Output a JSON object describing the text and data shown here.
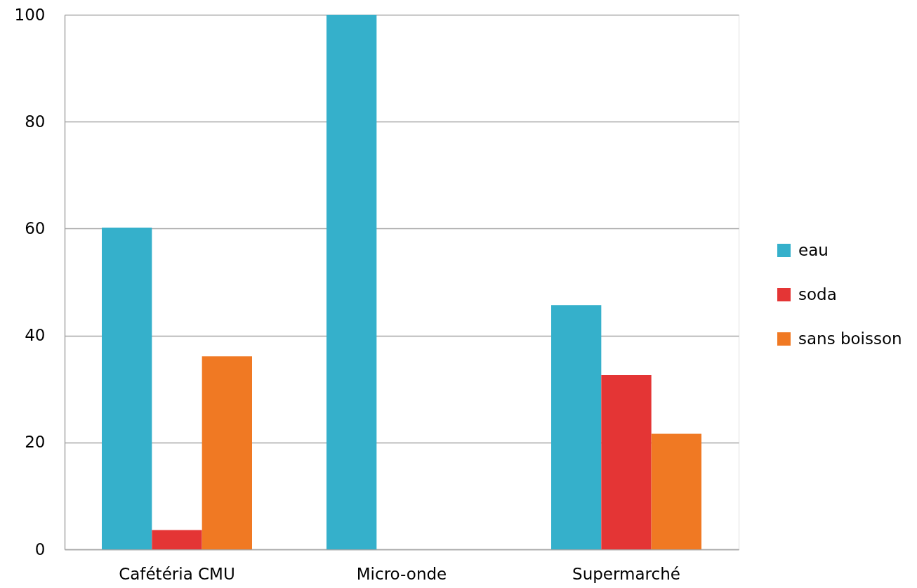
{
  "chart_data": {
    "type": "bar",
    "categories": [
      "Cafétéria CMU",
      "Micro-onde",
      "Supermarché"
    ],
    "series": [
      {
        "name": "eau",
        "color": "#35b0cb",
        "values": [
          60.2,
          100,
          45.7
        ]
      },
      {
        "name": "soda",
        "color": "#e43535",
        "values": [
          3.6,
          null,
          32.6
        ]
      },
      {
        "name": "sans boisson",
        "color": "#f07923",
        "values": [
          36.1,
          null,
          21.6
        ]
      }
    ],
    "ylim": [
      0,
      100
    ],
    "yticks": [
      0,
      20,
      40,
      60,
      80,
      100
    ],
    "grid": "y",
    "legend": "right"
  }
}
